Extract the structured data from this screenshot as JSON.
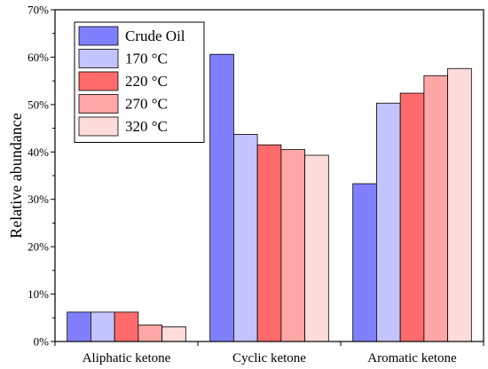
{
  "chart_data": {
    "type": "bar",
    "title": "",
    "xlabel": "",
    "ylabel": "Relative abundance",
    "ylim": [
      0,
      70
    ],
    "y_ticks": [
      "0%",
      "10%",
      "20%",
      "30%",
      "40%",
      "50%",
      "60%",
      "70%"
    ],
    "y_tick_values": [
      0,
      10,
      20,
      30,
      40,
      50,
      60,
      70
    ],
    "categories": [
      "Aliphatic ketone",
      "Cyclic ketone",
      "Aromatic ketone"
    ],
    "series": [
      {
        "name": "Crude Oil",
        "color": "#8080ff",
        "values": [
          6.2,
          60.6,
          33.3
        ]
      },
      {
        "name": "170 °C",
        "color": "#c3c3ff",
        "values": [
          6.2,
          43.7,
          50.3
        ]
      },
      {
        "name": "220 °C",
        "color": "#ff6b6b",
        "values": [
          6.2,
          41.5,
          52.4
        ]
      },
      {
        "name": "270 °C",
        "color": "#ffa6a6",
        "values": [
          3.5,
          40.5,
          56.1
        ]
      },
      {
        "name": "320 °C",
        "color": "#ffdcdc",
        "values": [
          3.1,
          39.3,
          57.6
        ]
      }
    ],
    "grid": false,
    "legend_position": "top-left"
  }
}
